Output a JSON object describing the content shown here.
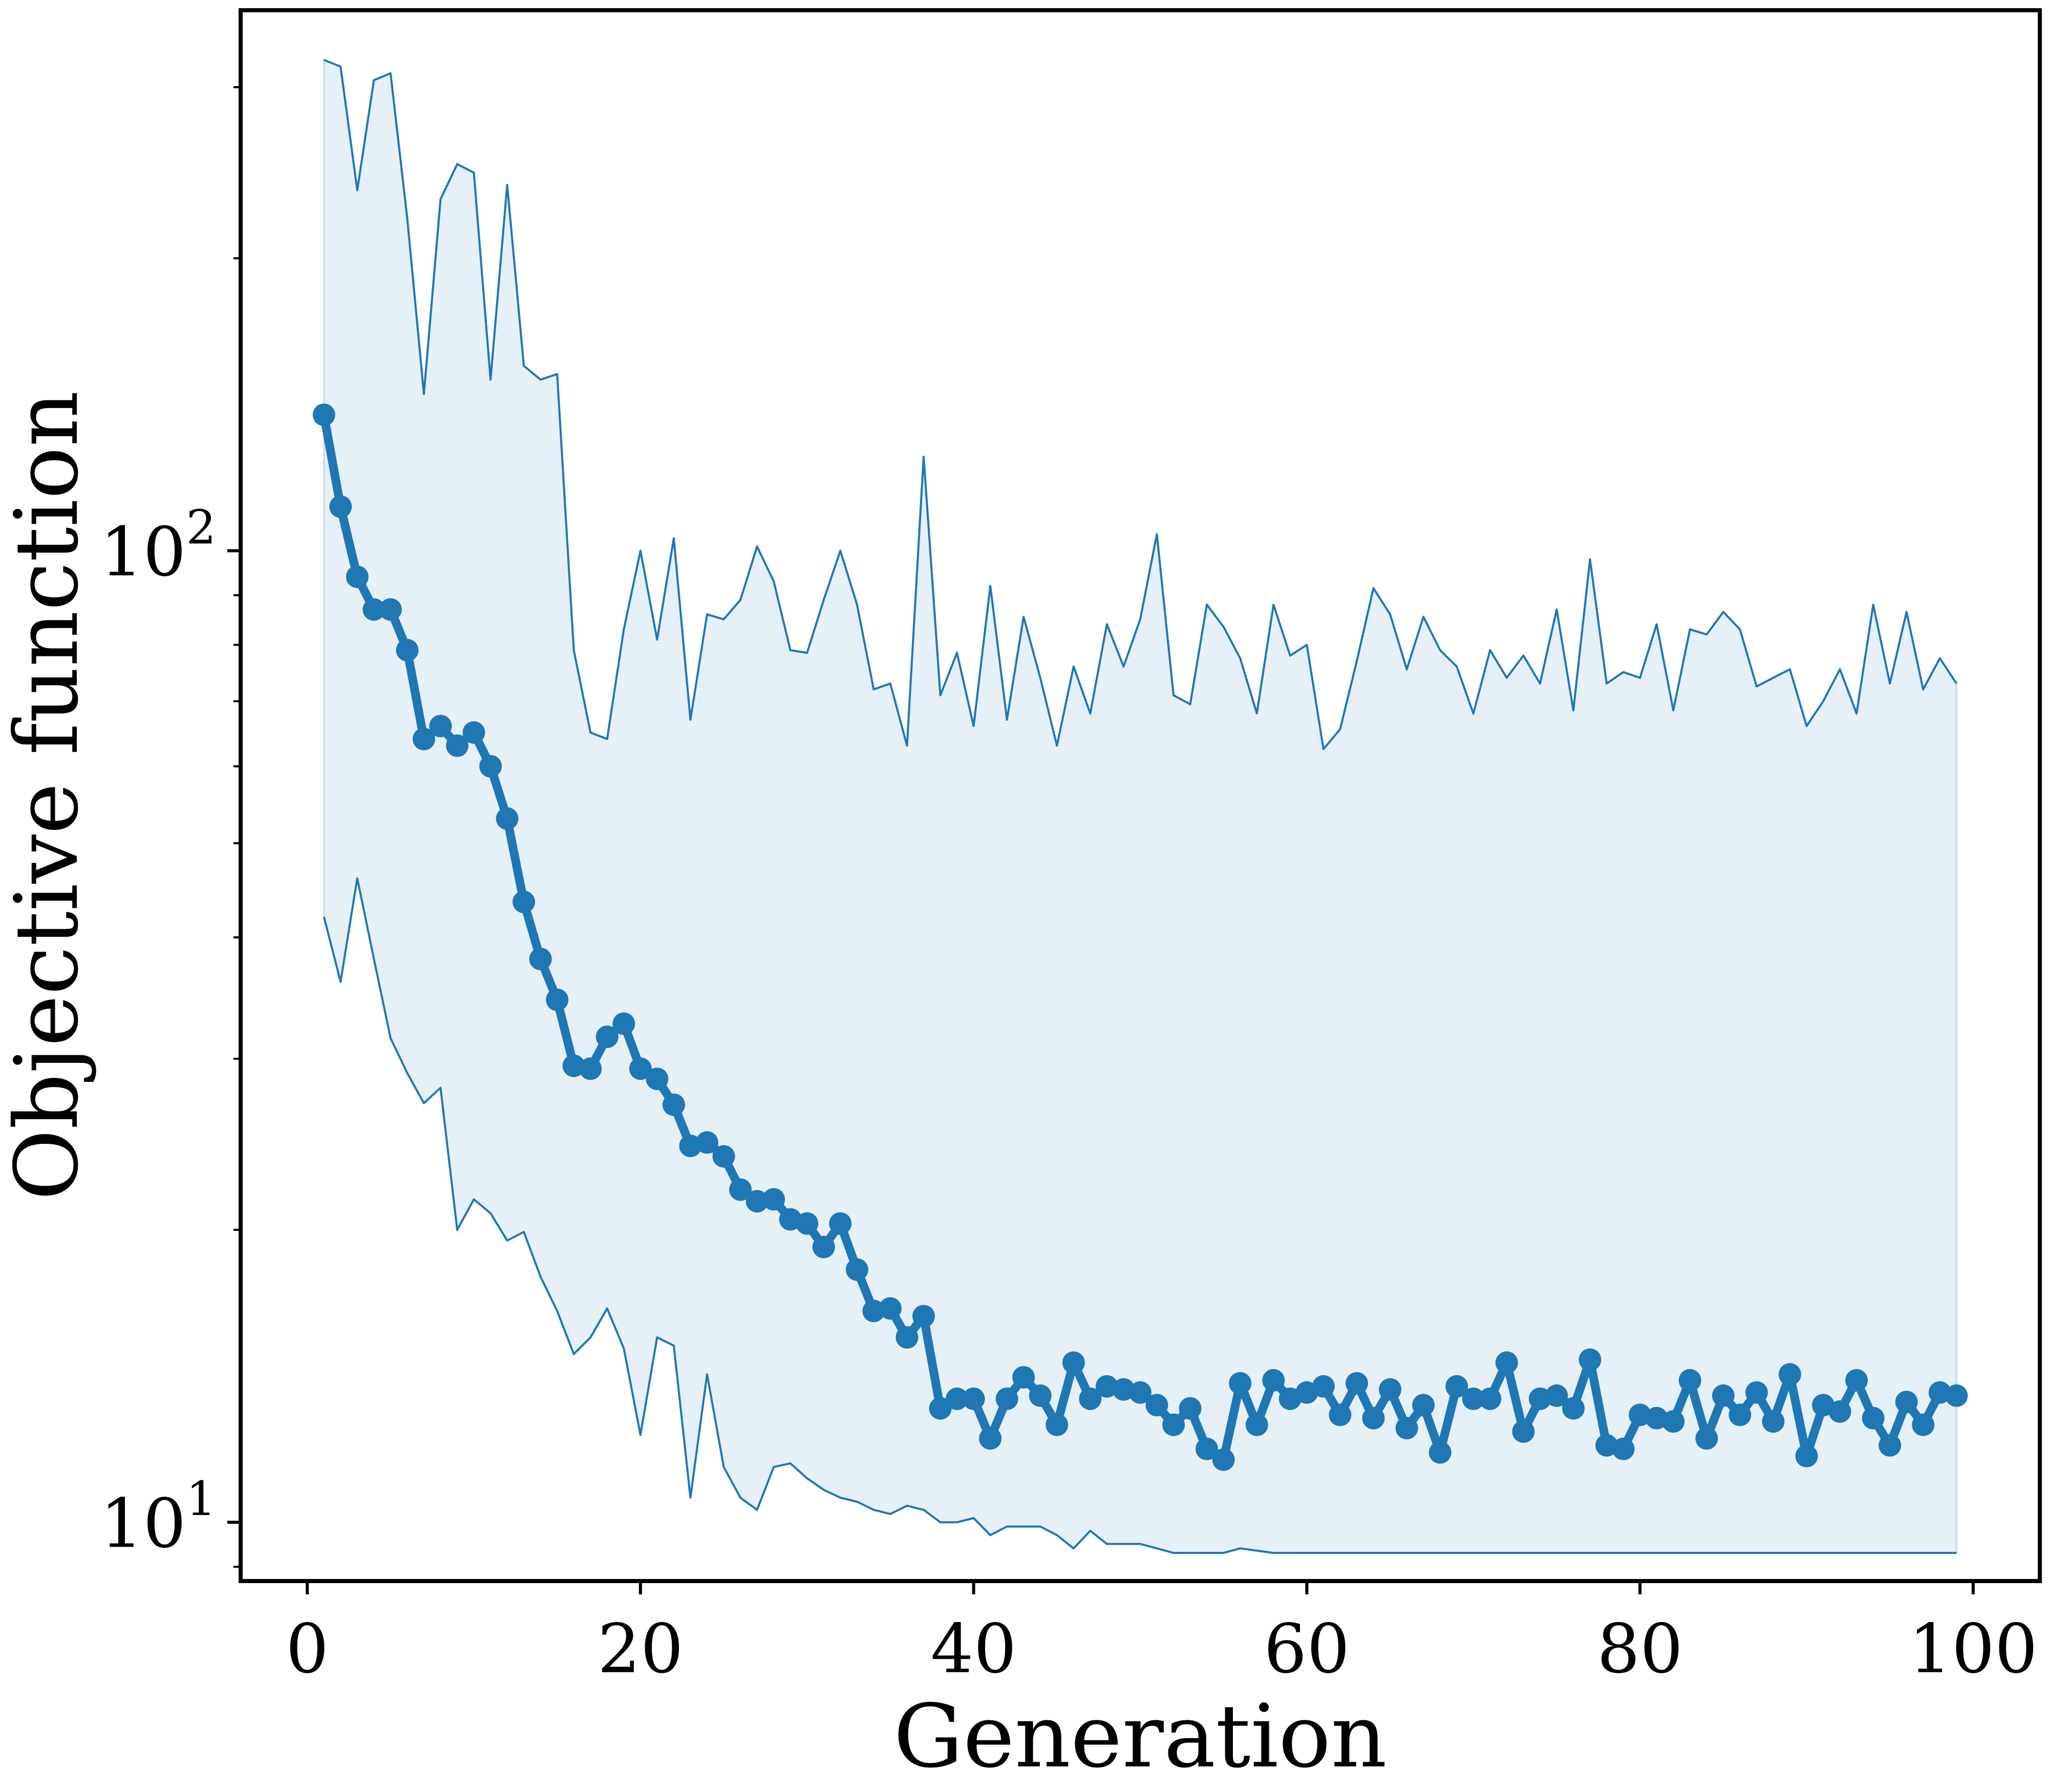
{
  "chart_data": {
    "type": "line",
    "title": "",
    "xlabel": "Generation",
    "ylabel": "Objective function",
    "xlim": [
      -4,
      104
    ],
    "ylim": [
      8.7,
      360
    ],
    "yscale": "log",
    "grid": false,
    "x_ticks": [
      0,
      20,
      40,
      60,
      80,
      100
    ],
    "x_tick_labels": [
      "0",
      "20",
      "40",
      "60",
      "80",
      "100"
    ],
    "y_major_ticks": [
      10,
      100
    ],
    "y_tick_labels": [
      {
        "base": "10",
        "exp": "1"
      },
      {
        "base": "10",
        "exp": "2"
      }
    ],
    "y_minor_ticks": [
      9,
      20,
      30,
      40,
      50,
      60,
      70,
      80,
      90,
      200,
      300
    ],
    "x": [
      1,
      2,
      3,
      4,
      5,
      6,
      7,
      8,
      9,
      10,
      11,
      12,
      13,
      14,
      15,
      16,
      17,
      18,
      19,
      20,
      21,
      22,
      23,
      24,
      25,
      26,
      27,
      28,
      29,
      30,
      31,
      32,
      33,
      34,
      35,
      36,
      37,
      38,
      39,
      40,
      41,
      42,
      43,
      44,
      45,
      46,
      47,
      48,
      49,
      50,
      51,
      52,
      53,
      54,
      55,
      56,
      57,
      58,
      59,
      60,
      61,
      62,
      63,
      64,
      65,
      66,
      67,
      68,
      69,
      70,
      71,
      72,
      73,
      74,
      75,
      76,
      77,
      78,
      79,
      80,
      81,
      82,
      83,
      84,
      85,
      86,
      87,
      88,
      89,
      90,
      91,
      92,
      93,
      94,
      95,
      96,
      97,
      98,
      99
    ],
    "series": [
      {
        "role": "mean",
        "color": "#1f77b4",
        "values": [
          138,
          111,
          94,
          87,
          87,
          79,
          64,
          66,
          63,
          65,
          60,
          53,
          43.5,
          38,
          34.5,
          29.5,
          29.3,
          31.6,
          32.6,
          29.3,
          28.6,
          26.9,
          24.4,
          24.6,
          23.8,
          22,
          21.4,
          21.5,
          20.5,
          20.3,
          19.2,
          20.3,
          18.2,
          16.5,
          16.6,
          15.5,
          16.3,
          13.1,
          13.4,
          13.4,
          12.2,
          13.4,
          14.1,
          13.5,
          12.6,
          14.6,
          13.4,
          13.8,
          13.7,
          13.6,
          13.2,
          12.6,
          13.1,
          11.9,
          11.6,
          13.9,
          12.6,
          14,
          13.4,
          13.6,
          13.8,
          12.9,
          13.9,
          12.8,
          13.7,
          12.5,
          13.2,
          11.8,
          13.8,
          13.4,
          13.4,
          14.6,
          12.4,
          13.4,
          13.5,
          13.1,
          14.7,
          12,
          11.9,
          12.9,
          12.8,
          12.7,
          14,
          12.2,
          13.5,
          12.9,
          13.6,
          12.7,
          14.2,
          11.7,
          13.2,
          13,
          14,
          12.8,
          12,
          13.3,
          12.6,
          13.6,
          13.5
        ]
      },
      {
        "role": "upper-bound",
        "color": "#1f77b4",
        "values": [
          320,
          315,
          235,
          305,
          310,
          220,
          145,
          230,
          250,
          245,
          150,
          238,
          155,
          150,
          152,
          79,
          65,
          64,
          83,
          100,
          81,
          103,
          67,
          86,
          85,
          89,
          101,
          93,
          79,
          78.5,
          89,
          100,
          88,
          72,
          73,
          63,
          125,
          71,
          78.5,
          66,
          92,
          67,
          85.5,
          74,
          63,
          76,
          68,
          84,
          76,
          85,
          104,
          71,
          69.5,
          88,
          83.5,
          77.5,
          68,
          88,
          78,
          80,
          62.5,
          65.5,
          77,
          91.5,
          86,
          75.5,
          85.5,
          79,
          76,
          68,
          79,
          74,
          78,
          73,
          87,
          68.5,
          98,
          73,
          75,
          74,
          84,
          68.5,
          83,
          82,
          86.5,
          83,
          72.5,
          74,
          75.5,
          66,
          70,
          75.5,
          68,
          88,
          73,
          86.5,
          72,
          77.5,
          73
        ]
      },
      {
        "role": "lower-bound",
        "color": "#1f77b4",
        "values": [
          42,
          36,
          46,
          38,
          31.5,
          29,
          27,
          28,
          20,
          21.5,
          20.8,
          19.5,
          19.9,
          17.9,
          16.5,
          14.9,
          15.5,
          16.6,
          15.1,
          12.3,
          15.5,
          15.2,
          10.6,
          14.2,
          11.4,
          10.6,
          10.3,
          11.4,
          11.5,
          11.1,
          10.8,
          10.6,
          10.5,
          10.3,
          10.2,
          10.4,
          10.3,
          10,
          10,
          10.1,
          9.7,
          9.9,
          9.9,
          9.9,
          9.7,
          9.4,
          9.8,
          9.5,
          9.5,
          9.5,
          9.4,
          9.3,
          9.3,
          9.3,
          9.3,
          9.4,
          9.35,
          9.3,
          9.3,
          9.3,
          9.3,
          9.3,
          9.3,
          9.3,
          9.3,
          9.3,
          9.3,
          9.3,
          9.3,
          9.3,
          9.3,
          9.3,
          9.3,
          9.3,
          9.3,
          9.3,
          9.3,
          9.3,
          9.3,
          9.3,
          9.3,
          9.3,
          9.3,
          9.3,
          9.3,
          9.3,
          9.3,
          9.3,
          9.3,
          9.3,
          9.3,
          9.3,
          9.3,
          9.3,
          9.3,
          9.3,
          9.3,
          9.3,
          9.3
        ]
      }
    ]
  }
}
